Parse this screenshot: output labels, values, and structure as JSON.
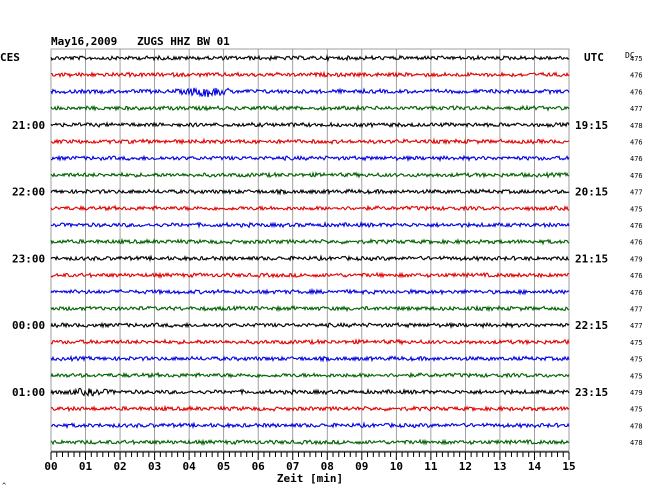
{
  "header": {
    "title": "May16,2009   ZUGS HHZ BW 01",
    "left_zone": "CES",
    "right_zone": "UTC",
    "dc_label": "DC"
  },
  "footer": {
    "xlabel": "Zeit [min]",
    "corner_mark": "^"
  },
  "colors": {
    "trace_cycle": [
      "#000000",
      "#e00000",
      "#0000e0",
      "#006000"
    ],
    "grid": "#888888",
    "axis": "#000000"
  },
  "chart_data": {
    "type": "line",
    "title": "May16,2009   ZUGS HHZ BW 01",
    "xlabel": "Zeit [min]",
    "x_ticks": [
      "00",
      "01",
      "02",
      "03",
      "04",
      "05",
      "06",
      "07",
      "08",
      "09",
      "10",
      "11",
      "12",
      "13",
      "14",
      "15"
    ],
    "xlim": [
      0,
      15
    ],
    "grid": true,
    "row_count": 24,
    "left_time_labels": [
      {
        "row": 4,
        "label": "21:00"
      },
      {
        "row": 8,
        "label": "22:00"
      },
      {
        "row": 12,
        "label": "23:00"
      },
      {
        "row": 16,
        "label": "00:00"
      },
      {
        "row": 20,
        "label": "01:00"
      }
    ],
    "right_time_labels": [
      {
        "row": 4,
        "label": "19:15"
      },
      {
        "row": 8,
        "label": "20:15"
      },
      {
        "row": 12,
        "label": "21:15"
      },
      {
        "row": 16,
        "label": "22:15"
      },
      {
        "row": 20,
        "label": "23:15"
      }
    ],
    "dc_values": [
      475,
      476,
      476,
      477,
      478,
      476,
      476,
      476,
      477,
      475,
      476,
      476,
      479,
      476,
      476,
      477,
      477,
      475,
      475,
      475,
      479,
      475,
      478,
      478
    ],
    "events": [
      {
        "row": 2,
        "minute": 4.5,
        "amplitude": 4
      },
      {
        "row": 20,
        "minute": 1.1,
        "amplitude": 2
      }
    ]
  }
}
